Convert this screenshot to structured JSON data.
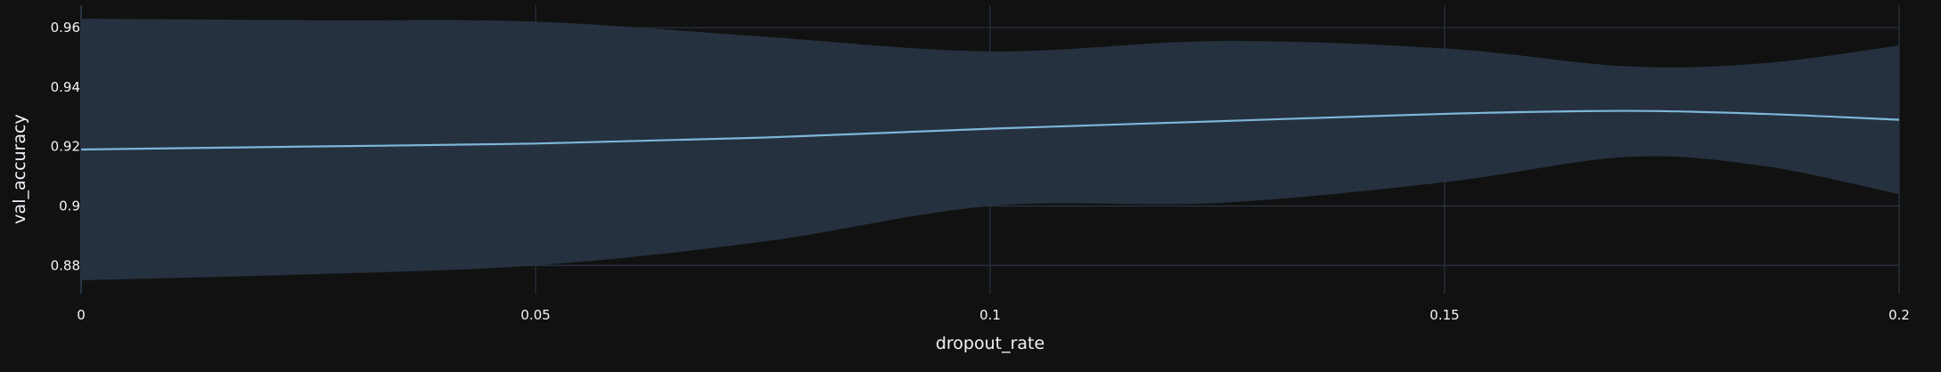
{
  "colors": {
    "background": "#111111",
    "grid": "#283442",
    "band": "#283442",
    "line": "#7eb6d9",
    "text": "#f2f5fa"
  },
  "chart_data": {
    "type": "line",
    "title": "",
    "xlabel": "dropout_rate",
    "ylabel": "val_accuracy",
    "xlim": [
      0,
      0.2
    ],
    "ylim": [
      0.8705,
      0.9675
    ],
    "grid": true,
    "x_ticks": [
      0,
      0.05,
      0.1,
      0.15,
      0.2
    ],
    "x_tick_labels": [
      "0",
      "0.05",
      "0.1",
      "0.15",
      "0.2"
    ],
    "y_ticks": [
      0.88,
      0.9,
      0.92,
      0.94,
      0.96
    ],
    "y_tick_labels": [
      "0.88",
      "0.9",
      "0.92",
      "0.94",
      "0.96"
    ],
    "series": [
      {
        "x": [
          0,
          0.025,
          0.05,
          0.075,
          0.1,
          0.125,
          0.15,
          0.17,
          0.185,
          0.2
        ],
        "mean": [
          0.919,
          0.92,
          0.921,
          0.923,
          0.926,
          0.9285,
          0.931,
          0.932,
          0.931,
          0.929
        ],
        "upper": [
          0.963,
          0.9625,
          0.962,
          0.957,
          0.952,
          0.9555,
          0.953,
          0.947,
          0.948,
          0.954
        ],
        "lower": [
          0.875,
          0.877,
          0.88,
          0.888,
          0.9,
          0.901,
          0.908,
          0.9165,
          0.9135,
          0.904
        ]
      }
    ]
  }
}
